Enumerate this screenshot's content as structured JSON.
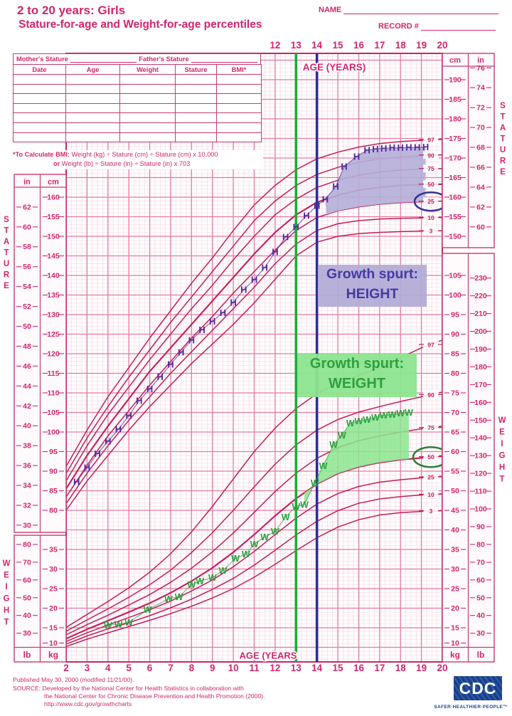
{
  "header": {
    "title_line1": "2 to 20 years: Girls",
    "title_line2": "Stature-for-age and Weight-for-age percentiles",
    "name_label": "NAME",
    "record_label": "RECORD #"
  },
  "entry_table": {
    "mothers_stature_label": "Mother's Stature",
    "fathers_stature_label": "Father's Stature",
    "columns": [
      "Date",
      "Age",
      "Weight",
      "Stature",
      "BMI*"
    ],
    "empty_rows": 7,
    "bmi_note": {
      "prefix": "*To Calculate BMI:",
      "line1": "Weight (kg) ÷ Stature (cm) ÷ Stature (cm) x 10,000",
      "or_word": "or",
      "line2": "Weight (lb) ÷ Stature (in) ÷ Stature (in) x 703"
    }
  },
  "annotations": {
    "height_box": {
      "line1": "Growth spurt:",
      "line2": "HEIGHT"
    },
    "weight_box": {
      "line1": "Growth spurt:",
      "line2": "WEIGHT"
    }
  },
  "footer": {
    "published": "Published May 30, 2000 (modified 11/21/00).",
    "source_label": "SOURCE:",
    "source_line1": "Developed by the National Center for Health Statistics in collaboration with",
    "source_line2": "the National Center for Chronic Disease Prevention and Health Promotion (2000).",
    "url": "http://www.cdc.gov/growthcharts",
    "cdc_logo_text": "CDC",
    "cdc_tagline": "SAFER·HEALTHIER·PEOPLE™"
  },
  "chart_data": {
    "type": "line",
    "title": "2 to 20 years: Girls — Stature-for-age and Weight-for-age percentiles",
    "x": {
      "label_top": "AGE (YEARS)",
      "label_bottom": "AGE (YEARS",
      "min": 2,
      "max": 20,
      "bottom_ticks": [
        2,
        3,
        4,
        5,
        6,
        7,
        8,
        9,
        10,
        11,
        12,
        13,
        14,
        15,
        16,
        17,
        18,
        19,
        20
      ],
      "top_ticks": [
        12,
        13,
        14,
        15,
        16,
        17,
        18,
        19,
        20
      ]
    },
    "axes": {
      "stature_left": {
        "in_header": "in",
        "cm_header": "cm",
        "side_label": "STATURE",
        "in_ticks": [
          62,
          60,
          58,
          56,
          54,
          52,
          50,
          48,
          46,
          44,
          42,
          40,
          38,
          36,
          34,
          32,
          30
        ],
        "cm_ticks": [
          160,
          155,
          150,
          145,
          140,
          135,
          130,
          125,
          120,
          115,
          110,
          105,
          100,
          95,
          90,
          85,
          80
        ]
      },
      "stature_right": {
        "cm_header": "cm",
        "in_header": "in",
        "side_label": "STATURE",
        "cm_ticks": [
          190,
          185,
          180,
          175,
          170,
          165,
          160,
          155,
          150
        ],
        "in_ticks": [
          76,
          74,
          72,
          70,
          68,
          66,
          64,
          62,
          60
        ]
      },
      "weight_left": {
        "lb_unit": "lb",
        "kg_unit": "kg",
        "side_label": "WEIGHT",
        "lb_ticks": [
          80,
          70,
          60,
          50,
          40,
          30
        ],
        "kg_ticks": [
          35,
          30,
          25,
          20,
          15,
          10
        ]
      },
      "weight_right": {
        "kg_unit": "kg",
        "lb_unit": "lb",
        "side_label": "WEIGHT",
        "kg_ticks": [
          105,
          100,
          95,
          90,
          85,
          80,
          75,
          70,
          65,
          60,
          55,
          50,
          45,
          40,
          35,
          30,
          25,
          20,
          15,
          10
        ],
        "lb_ticks": [
          230,
          220,
          210,
          200,
          190,
          180,
          170,
          160,
          150,
          140,
          130,
          120,
          110,
          100,
          90,
          80,
          70,
          60,
          50,
          40,
          30
        ]
      }
    },
    "percentile_labels": [
      97,
      90,
      75,
      50,
      25,
      10,
      3
    ],
    "stature_percentiles_cm": {
      "ages": [
        2,
        3,
        4,
        5,
        6,
        7,
        8,
        9,
        10,
        11,
        12,
        13,
        14,
        15,
        16,
        17,
        18,
        19,
        20
      ],
      "series": [
        {
          "p": 3,
          "values": [
            80.0,
            87.5,
            94.0,
            100.5,
            106.5,
            112.0,
            117.5,
            122.5,
            127.5,
            133.0,
            139.0,
            145.0,
            148.5,
            150.0,
            150.7,
            151.0,
            151.2,
            151.3,
            151.4
          ]
        },
        {
          "p": 10,
          "values": [
            81.7,
            89.5,
            96.5,
            103.0,
            109.0,
            115.0,
            120.5,
            126.0,
            131.5,
            137.0,
            143.0,
            148.0,
            151.5,
            153.2,
            154.0,
            154.4,
            154.6,
            154.7,
            154.8
          ]
        },
        {
          "p": 25,
          "values": [
            83.4,
            91.5,
            99.0,
            105.5,
            112.0,
            118.0,
            124.0,
            129.5,
            135.5,
            141.0,
            146.5,
            151.5,
            154.8,
            156.5,
            157.5,
            158.2,
            158.6,
            158.8,
            159.0
          ]
        },
        {
          "p": 50,
          "values": [
            85.5,
            94.0,
            101.5,
            108.5,
            115.5,
            121.5,
            127.5,
            133.5,
            139.5,
            145.5,
            151.0,
            155.5,
            158.7,
            160.5,
            161.8,
            162.5,
            163.0,
            163.2,
            163.3
          ]
        },
        {
          "p": 75,
          "values": [
            87.5,
            96.5,
            104.5,
            111.5,
            118.5,
            125.0,
            131.5,
            137.5,
            144.0,
            150.0,
            155.5,
            159.5,
            162.5,
            164.3,
            165.6,
            166.4,
            166.9,
            167.2,
            167.3
          ]
        },
        {
          "p": 90,
          "values": [
            89.4,
            98.5,
            106.5,
            114.0,
            121.0,
            128.0,
            134.5,
            141.0,
            147.5,
            154.0,
            159.0,
            163.0,
            165.8,
            167.6,
            168.9,
            169.8,
            170.3,
            170.6,
            170.8
          ]
        },
        {
          "p": 97,
          "values": [
            91.2,
            100.5,
            109.0,
            116.5,
            124.0,
            131.0,
            138.0,
            144.5,
            151.5,
            158.0,
            163.0,
            167.0,
            169.8,
            171.5,
            172.8,
            173.7,
            174.2,
            174.5,
            174.8
          ]
        }
      ]
    },
    "weight_percentiles_kg": {
      "ages": [
        2,
        3,
        4,
        5,
        6,
        7,
        8,
        9,
        10,
        11,
        12,
        13,
        14,
        15,
        16,
        17,
        18,
        19,
        20
      ],
      "series": [
        {
          "p": 3,
          "values": [
            10.2,
            12.1,
            13.7,
            15.3,
            16.9,
            18.6,
            20.5,
            22.6,
            25.0,
            27.9,
            31.2,
            34.7,
            38.0,
            40.7,
            42.6,
            43.8,
            44.4,
            44.7,
            44.9
          ]
        },
        {
          "p": 10,
          "values": [
            10.8,
            12.9,
            14.7,
            16.3,
            18.1,
            20.1,
            22.3,
            24.8,
            27.6,
            31.0,
            34.8,
            38.7,
            42.2,
            44.9,
            46.8,
            47.9,
            48.5,
            48.9,
            49.2
          ]
        },
        {
          "p": 25,
          "values": [
            11.5,
            13.7,
            15.7,
            17.6,
            19.6,
            21.8,
            24.4,
            27.2,
            30.6,
            34.5,
            38.8,
            43.0,
            46.6,
            49.3,
            51.1,
            52.2,
            52.8,
            53.3,
            53.7
          ]
        },
        {
          "p": 50,
          "values": [
            12.2,
            14.6,
            16.8,
            19.0,
            21.3,
            23.9,
            26.9,
            30.3,
            34.3,
            38.8,
            43.6,
            48.0,
            51.7,
            54.4,
            56.1,
            57.2,
            57.9,
            58.4,
            58.9
          ]
        },
        {
          "p": 75,
          "values": [
            13.2,
            15.8,
            18.2,
            20.8,
            23.5,
            26.6,
            30.2,
            34.4,
            39.2,
            44.5,
            49.8,
            54.5,
            58.3,
            61.0,
            62.8,
            64.0,
            65.0,
            65.8,
            66.5
          ]
        },
        {
          "p": 90,
          "values": [
            14.1,
            17.0,
            19.8,
            22.8,
            26.0,
            29.7,
            34.2,
            39.3,
            45.0,
            51.0,
            56.8,
            61.7,
            65.5,
            68.2,
            70.1,
            71.5,
            72.8,
            74.0,
            75.2
          ]
        },
        {
          "p": 97,
          "values": [
            15.1,
            18.4,
            21.7,
            25.2,
            29.2,
            33.9,
            39.5,
            46.0,
            53.0,
            60.0,
            66.0,
            71.0,
            74.8,
            77.5,
            79.5,
            81.5,
            84.0,
            86.5,
            88.5
          ]
        }
      ]
    },
    "patient": {
      "height_marker": "H",
      "height_series_age_cm": [
        [
          2.5,
          87.3
        ],
        [
          3,
          90.9
        ],
        [
          3.5,
          94.5
        ],
        [
          4,
          97.6
        ],
        [
          4.5,
          100.7
        ],
        [
          5,
          104.2
        ],
        [
          5.5,
          108
        ],
        [
          6,
          111
        ],
        [
          6.5,
          114.1
        ],
        [
          7,
          117.3
        ],
        [
          7.5,
          120.4
        ],
        [
          8,
          123.5
        ],
        [
          8.5,
          126.1
        ],
        [
          9,
          128.3
        ],
        [
          9.5,
          130.5
        ],
        [
          10,
          133.1
        ],
        [
          10.5,
          136.4
        ],
        [
          11,
          138.9
        ],
        [
          11.5,
          142
        ],
        [
          12,
          146
        ],
        [
          12.5,
          149.8
        ],
        [
          13,
          152.4
        ],
        [
          13.5,
          155.3
        ],
        [
          14,
          157.8
        ],
        [
          14.4,
          159.5
        ],
        [
          14.9,
          162.7
        ],
        [
          15.3,
          167.8
        ],
        [
          15.9,
          170.4
        ],
        [
          16.4,
          172
        ],
        [
          16.8,
          172.3
        ],
        [
          17.2,
          172.5
        ],
        [
          17.6,
          172.6
        ],
        [
          18,
          172.6
        ],
        [
          18.4,
          172.7
        ],
        [
          18.8,
          172.7
        ],
        [
          19.2,
          172.8
        ]
      ],
      "weight_marker": "W",
      "weight_series_age_kg": [
        [
          4,
          15.6
        ],
        [
          4.5,
          15.9
        ],
        [
          5,
          16.4
        ],
        [
          5.9,
          19.6
        ],
        [
          6.9,
          22.4
        ],
        [
          7.4,
          22.9
        ],
        [
          8,
          26
        ],
        [
          8.4,
          26.9
        ],
        [
          9,
          27.8
        ],
        [
          9.5,
          29.6
        ],
        [
          10.1,
          32.7
        ],
        [
          10.6,
          33.8
        ],
        [
          11,
          36.4
        ],
        [
          11.5,
          38.2
        ],
        [
          12,
          39.6
        ],
        [
          12.5,
          43.3
        ],
        [
          13,
          46
        ],
        [
          13.4,
          46.5
        ],
        [
          13.9,
          52
        ],
        [
          14.3,
          56.4
        ],
        [
          14.8,
          61.8
        ],
        [
          15.2,
          64.2
        ],
        [
          15.6,
          67.3
        ],
        [
          16,
          67.8
        ],
        [
          16.4,
          68.2
        ],
        [
          16.8,
          68.7
        ],
        [
          17.2,
          69.3
        ],
        [
          17.6,
          69.5
        ],
        [
          18,
          69.8
        ],
        [
          18.4,
          70
        ]
      ]
    },
    "highlights": {
      "stature_circled_percentile": 25,
      "weight_circled_percentile": 50,
      "height_region": {
        "from_age": 14.4,
        "to_age": 19.2,
        "lower_percentile": 25
      },
      "weight_region": {
        "from_age": 13.4,
        "to_age": 18.4,
        "lower_percentile": 50
      }
    },
    "reference_lines": [
      {
        "age": 13,
        "color_key": "line_green"
      },
      {
        "age": 14,
        "color_key": "line_navy"
      }
    ],
    "colors": {
      "crimson": "#d2256d",
      "curve": "#c01e5a",
      "grid_fine": "#f5d3e0",
      "grid_major": "#eледи6799f",
      "purple": "#4f2a9e",
      "green": "#2aa13e",
      "line_green": "#21a83b",
      "line_navy": "#2f2d96",
      "lavender_fill": "#b5aed8",
      "green_fill": "#8be58e",
      "navy_circle": "#353295",
      "green_circle": "#2e7d32"
    }
  }
}
